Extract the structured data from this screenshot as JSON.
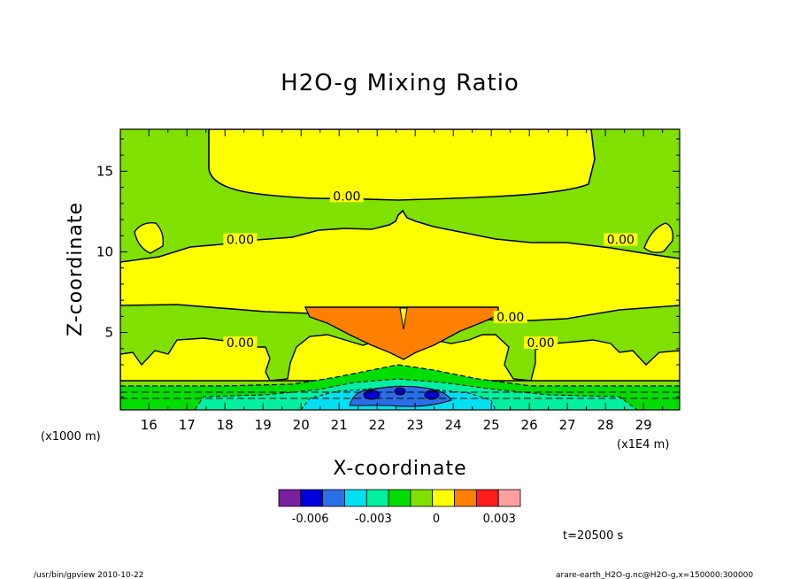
{
  "chart_data": {
    "type": "heatmap",
    "title": "H2O-g Mixing Ratio",
    "xlabel": "X-coordinate",
    "ylabel": "Z-coordinate",
    "x_unit": "(x1E4 m)",
    "y_unit": "(x1000 m)",
    "xlim": [
      15.25,
      29.95
    ],
    "ylim": [
      0.2,
      17.6
    ],
    "x_ticks": [
      16,
      17,
      18,
      19,
      20,
      21,
      22,
      23,
      24,
      25,
      26,
      27,
      28,
      29
    ],
    "y_ticks": [
      5,
      10,
      15
    ],
    "contour_labels": [
      {
        "text": "0.00",
        "x": 21.2,
        "y": 13.3
      },
      {
        "text": "0.00",
        "x": 18.4,
        "y": 10.6
      },
      {
        "text": "0.00",
        "x": 28.4,
        "y": 10.6
      },
      {
        "text": "0.00",
        "x": 25.5,
        "y": 5.8
      },
      {
        "text": "0.00",
        "x": 18.4,
        "y": 4.2
      },
      {
        "text": "0.00",
        "x": 26.3,
        "y": 4.2
      }
    ],
    "colorbar": {
      "colors": [
        "#7b1fa2",
        "#0000dd",
        "#2a6fe8",
        "#00e0f0",
        "#00f0a0",
        "#00dd00",
        "#80e000",
        "#ffff00",
        "#ff8000",
        "#ff1c1c",
        "#ff9f9f"
      ],
      "tick_labels": [
        "-0.006",
        "-0.003",
        "0",
        "0.003"
      ],
      "tick_values": [
        -0.006,
        -0.003,
        0,
        0.003
      ],
      "range": [
        -0.0075,
        0.004
      ]
    }
  },
  "annotations": {
    "time": "t=20500 s",
    "footer_left": "/usr/bin/gpview   2010-10-22",
    "footer_right": "arare-earth_H2O-g.nc@H2O-g,x=150000:300000"
  }
}
